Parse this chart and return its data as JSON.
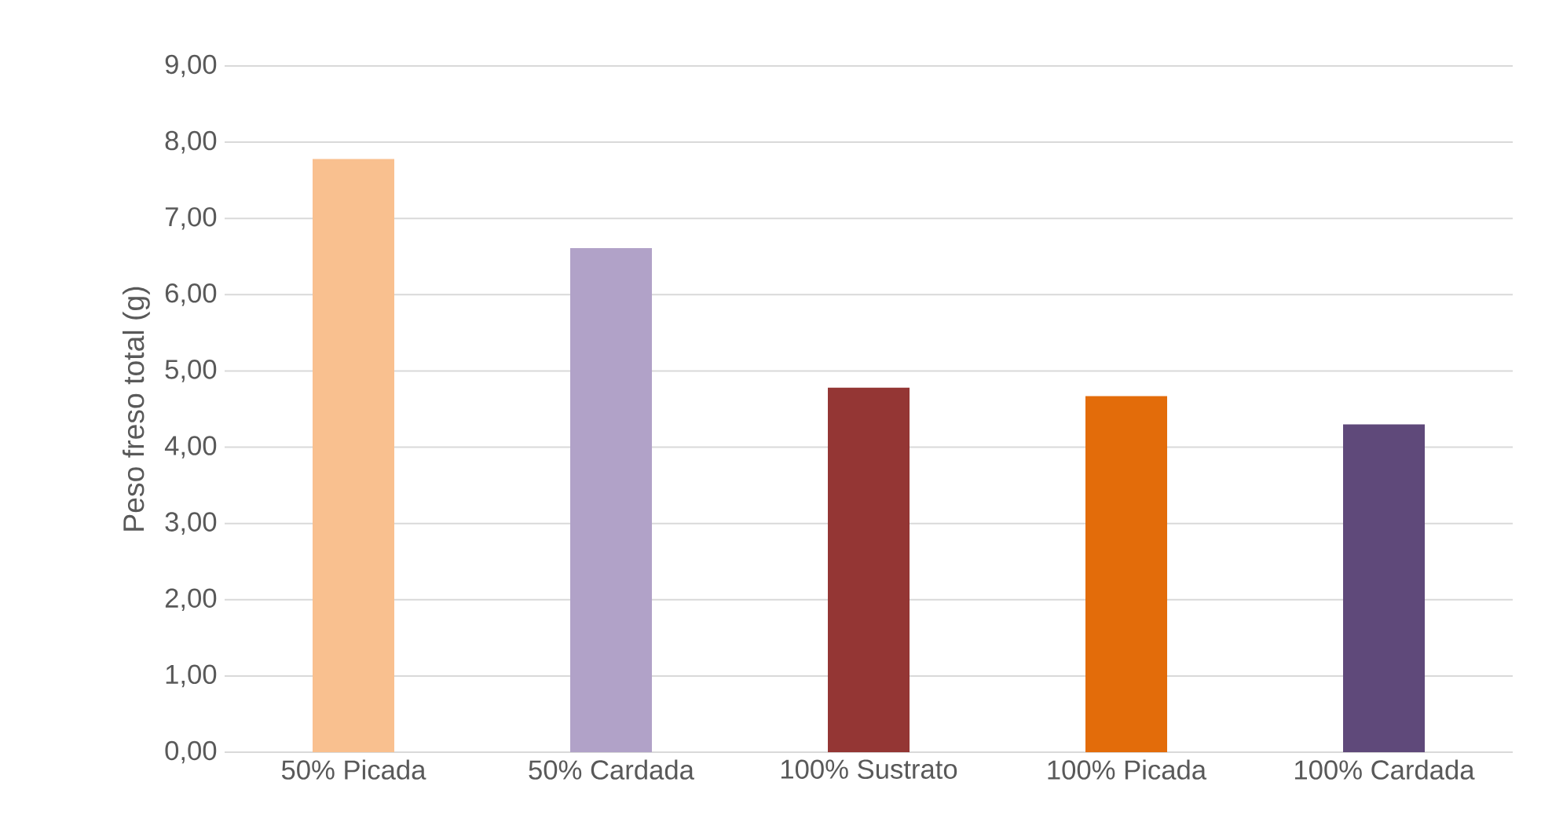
{
  "chart_data": {
    "type": "bar",
    "ylabel": "Peso freso total (g)",
    "categories": [
      "50% Picada",
      "50% Cardada",
      "100% Sustrato",
      "100% Picada",
      "100% Cardada"
    ],
    "values": [
      7.78,
      6.61,
      4.78,
      4.67,
      4.3
    ],
    "colors": [
      "#f9c08f",
      "#b1a2c8",
      "#943634",
      "#e36c0a",
      "#5f497a"
    ],
    "ylim": [
      0,
      9
    ],
    "yticks": [
      {
        "value": 0,
        "label": "0,00"
      },
      {
        "value": 1,
        "label": "1,00"
      },
      {
        "value": 2,
        "label": "2,00"
      },
      {
        "value": 3,
        "label": "3,00"
      },
      {
        "value": 4,
        "label": "4,00"
      },
      {
        "value": 5,
        "label": "5,00"
      },
      {
        "value": 6,
        "label": "6,00"
      },
      {
        "value": 7,
        "label": "7,00"
      },
      {
        "value": 8,
        "label": "8,00"
      },
      {
        "value": 9,
        "label": "9,00"
      }
    ],
    "grid": "y"
  }
}
